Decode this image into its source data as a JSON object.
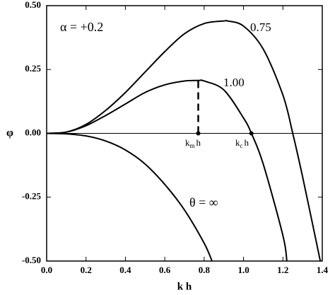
{
  "chart_data": {
    "type": "line",
    "x_label": "k h",
    "y_label": "φ",
    "xlim": [
      0,
      1.4
    ],
    "ylim": [
      -0.5,
      0.5
    ],
    "xticks": [
      {
        "value": 0,
        "label": "0.0"
      },
      {
        "value": 0.2,
        "label": "0.2"
      },
      {
        "value": 0.4,
        "label": "0.4"
      },
      {
        "value": 0.6,
        "label": "0.6"
      },
      {
        "value": 0.8,
        "label": "0.8"
      },
      {
        "value": 1,
        "label": "1.0"
      },
      {
        "value": 1.2,
        "label": "1.2"
      },
      {
        "value": 1.4,
        "label": "1.4"
      }
    ],
    "yticks": [
      {
        "value": -0.5,
        "label": "-0.50"
      },
      {
        "value": -0.25,
        "label": "-0.25"
      },
      {
        "value": 0,
        "label": "0.00"
      },
      {
        "value": 0.25,
        "label": "0.25"
      },
      {
        "value": 0.5,
        "label": "0.50"
      }
    ],
    "color": "#000000",
    "series": [
      {
        "x": [
          0,
          0.1,
          0.2,
          0.3,
          0.4,
          0.5,
          0.6,
          0.7,
          0.8,
          0.9,
          0.92,
          1.0,
          1.1,
          1.2,
          1.25,
          1.3,
          1.39
        ],
        "values": [
          0,
          0.005,
          0.035,
          0.09,
          0.16,
          0.24,
          0.32,
          0.39,
          0.43,
          0.44,
          0.44,
          0.42,
          0.33,
          0.15,
          0,
          -0.17,
          -0.5
        ]
      },
      {
        "x": [
          0,
          0.1,
          0.2,
          0.3,
          0.4,
          0.5,
          0.6,
          0.7,
          0.77,
          0.8,
          0.9,
          1.0,
          1.04,
          1.1,
          1.2,
          1.22
        ],
        "values": [
          0,
          0.005,
          0.03,
          0.07,
          0.115,
          0.16,
          0.19,
          0.205,
          0.207,
          0.205,
          0.17,
          0.06,
          0,
          -0.12,
          -0.4,
          -0.5
        ]
      },
      {
        "x": [
          0,
          0.1,
          0.2,
          0.3,
          0.4,
          0.5,
          0.6,
          0.7,
          0.8,
          0.84
        ],
        "values": [
          0,
          -0.002,
          -0.01,
          -0.03,
          -0.065,
          -0.12,
          -0.2,
          -0.3,
          -0.43,
          -0.5
        ]
      }
    ],
    "dashed_line": {
      "x": 0.77,
      "y": [
        0,
        0.207
      ]
    },
    "markers": [
      {
        "x": 0.77,
        "y": 0
      },
      {
        "x": 1.04,
        "y": 0
      }
    ],
    "annotations": [
      {
        "parts": [
          "α = +0.2"
        ]
      },
      {
        "parts": [
          "0.75"
        ]
      },
      {
        "parts": [
          "1.00"
        ]
      },
      {
        "parts": [
          "θ = ∞"
        ]
      },
      {
        "parts": [
          "k",
          "m",
          "h"
        ]
      },
      {
        "parts": [
          "k",
          "c",
          "h"
        ]
      }
    ]
  }
}
